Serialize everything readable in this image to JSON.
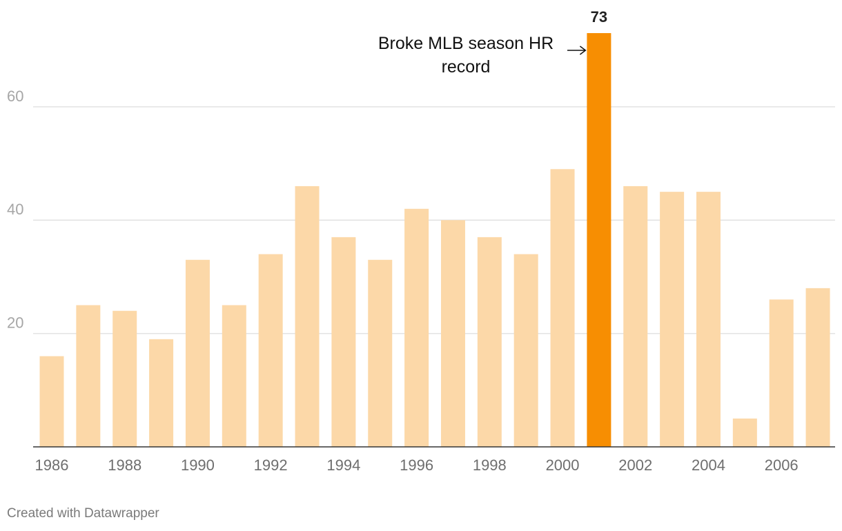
{
  "chart_data": {
    "type": "bar",
    "categories": [
      "1986",
      "1987",
      "1988",
      "1989",
      "1990",
      "1991",
      "1992",
      "1993",
      "1994",
      "1995",
      "1996",
      "1997",
      "1998",
      "1999",
      "2000",
      "2001",
      "2002",
      "2003",
      "2004",
      "2005",
      "2006",
      "2007"
    ],
    "values": [
      16,
      25,
      24,
      19,
      33,
      25,
      34,
      46,
      37,
      33,
      42,
      40,
      37,
      34,
      49,
      73,
      46,
      45,
      45,
      5,
      26,
      28
    ],
    "x_tick_labels": [
      "1986",
      "1988",
      "1990",
      "1992",
      "1994",
      "1996",
      "1998",
      "2000",
      "2002",
      "2004",
      "2006"
    ],
    "y_ticks": [
      20,
      40,
      60
    ],
    "ylim": [
      0,
      73
    ],
    "grid": true,
    "highlight": {
      "category": "2001",
      "value": 73,
      "label": "73"
    },
    "annotation": {
      "category": "2001",
      "lines": [
        "Broke MLB season HR",
        "record"
      ]
    },
    "colors": {
      "bar": "#fcd8a8",
      "highlight": "#f78e02",
      "grid": "#e2e2e2",
      "axis": "#333333"
    }
  },
  "footer": {
    "credit": "Created with Datawrapper"
  }
}
